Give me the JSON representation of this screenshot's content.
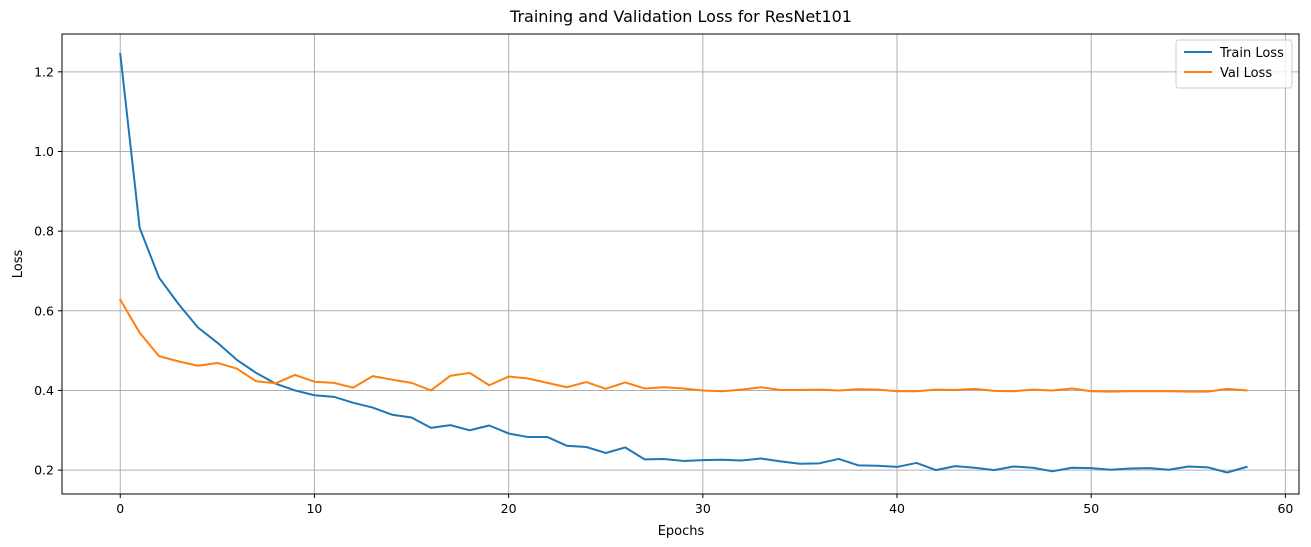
{
  "chart_data": {
    "type": "line",
    "title": "Training and Validation Loss for ResNet101",
    "xlabel": "Epochs",
    "ylabel": "Loss",
    "xlim": [
      -3,
      60.7
    ],
    "ylim": [
      0.14,
      1.295
    ],
    "xticks": [
      0,
      10,
      20,
      30,
      40,
      50,
      60
    ],
    "yticks": [
      0.2,
      0.4,
      0.6,
      0.8,
      1.0,
      1.2
    ],
    "ytick_labels": [
      "0.2",
      "0.4",
      "0.6",
      "0.8",
      "1.0",
      "1.2"
    ],
    "grid": true,
    "legend_position": "top-right",
    "x": [
      0,
      1,
      2,
      3,
      4,
      5,
      6,
      7,
      8,
      9,
      10,
      11,
      12,
      13,
      14,
      15,
      16,
      17,
      18,
      19,
      20,
      21,
      22,
      23,
      24,
      25,
      26,
      27,
      28,
      29,
      30,
      31,
      32,
      33,
      34,
      35,
      36,
      37,
      38,
      39,
      40,
      41,
      42,
      43,
      44,
      45,
      46,
      47,
      48,
      49,
      50,
      51,
      52,
      53,
      54,
      55,
      56,
      57,
      58
    ],
    "series": [
      {
        "name": "Train Loss",
        "color": "#1f77b4",
        "values": [
          1.245,
          0.808,
          0.683,
          0.617,
          0.558,
          0.52,
          0.477,
          0.444,
          0.417,
          0.4,
          0.388,
          0.384,
          0.369,
          0.357,
          0.339,
          0.332,
          0.306,
          0.313,
          0.3,
          0.312,
          0.292,
          0.283,
          0.283,
          0.261,
          0.258,
          0.243,
          0.257,
          0.227,
          0.228,
          0.223,
          0.225,
          0.226,
          0.224,
          0.229,
          0.222,
          0.216,
          0.217,
          0.228,
          0.212,
          0.211,
          0.208,
          0.218,
          0.2,
          0.21,
          0.206,
          0.2,
          0.209,
          0.206,
          0.197,
          0.206,
          0.205,
          0.201,
          0.204,
          0.205,
          0.201,
          0.209,
          0.207,
          0.194,
          0.208
        ]
      },
      {
        "name": "Val Loss",
        "color": "#ff7f0e",
        "values": [
          0.628,
          0.545,
          0.486,
          0.473,
          0.462,
          0.469,
          0.455,
          0.423,
          0.418,
          0.439,
          0.422,
          0.419,
          0.407,
          0.436,
          0.427,
          0.419,
          0.4,
          0.437,
          0.444,
          0.413,
          0.435,
          0.43,
          0.419,
          0.408,
          0.421,
          0.404,
          0.42,
          0.405,
          0.408,
          0.405,
          0.4,
          0.398,
          0.402,
          0.408,
          0.401,
          0.401,
          0.402,
          0.4,
          0.403,
          0.402,
          0.398,
          0.398,
          0.402,
          0.401,
          0.404,
          0.399,
          0.398,
          0.402,
          0.4,
          0.405,
          0.398,
          0.397,
          0.398,
          0.398,
          0.398,
          0.397,
          0.397,
          0.404,
          0.4
        ]
      }
    ]
  }
}
